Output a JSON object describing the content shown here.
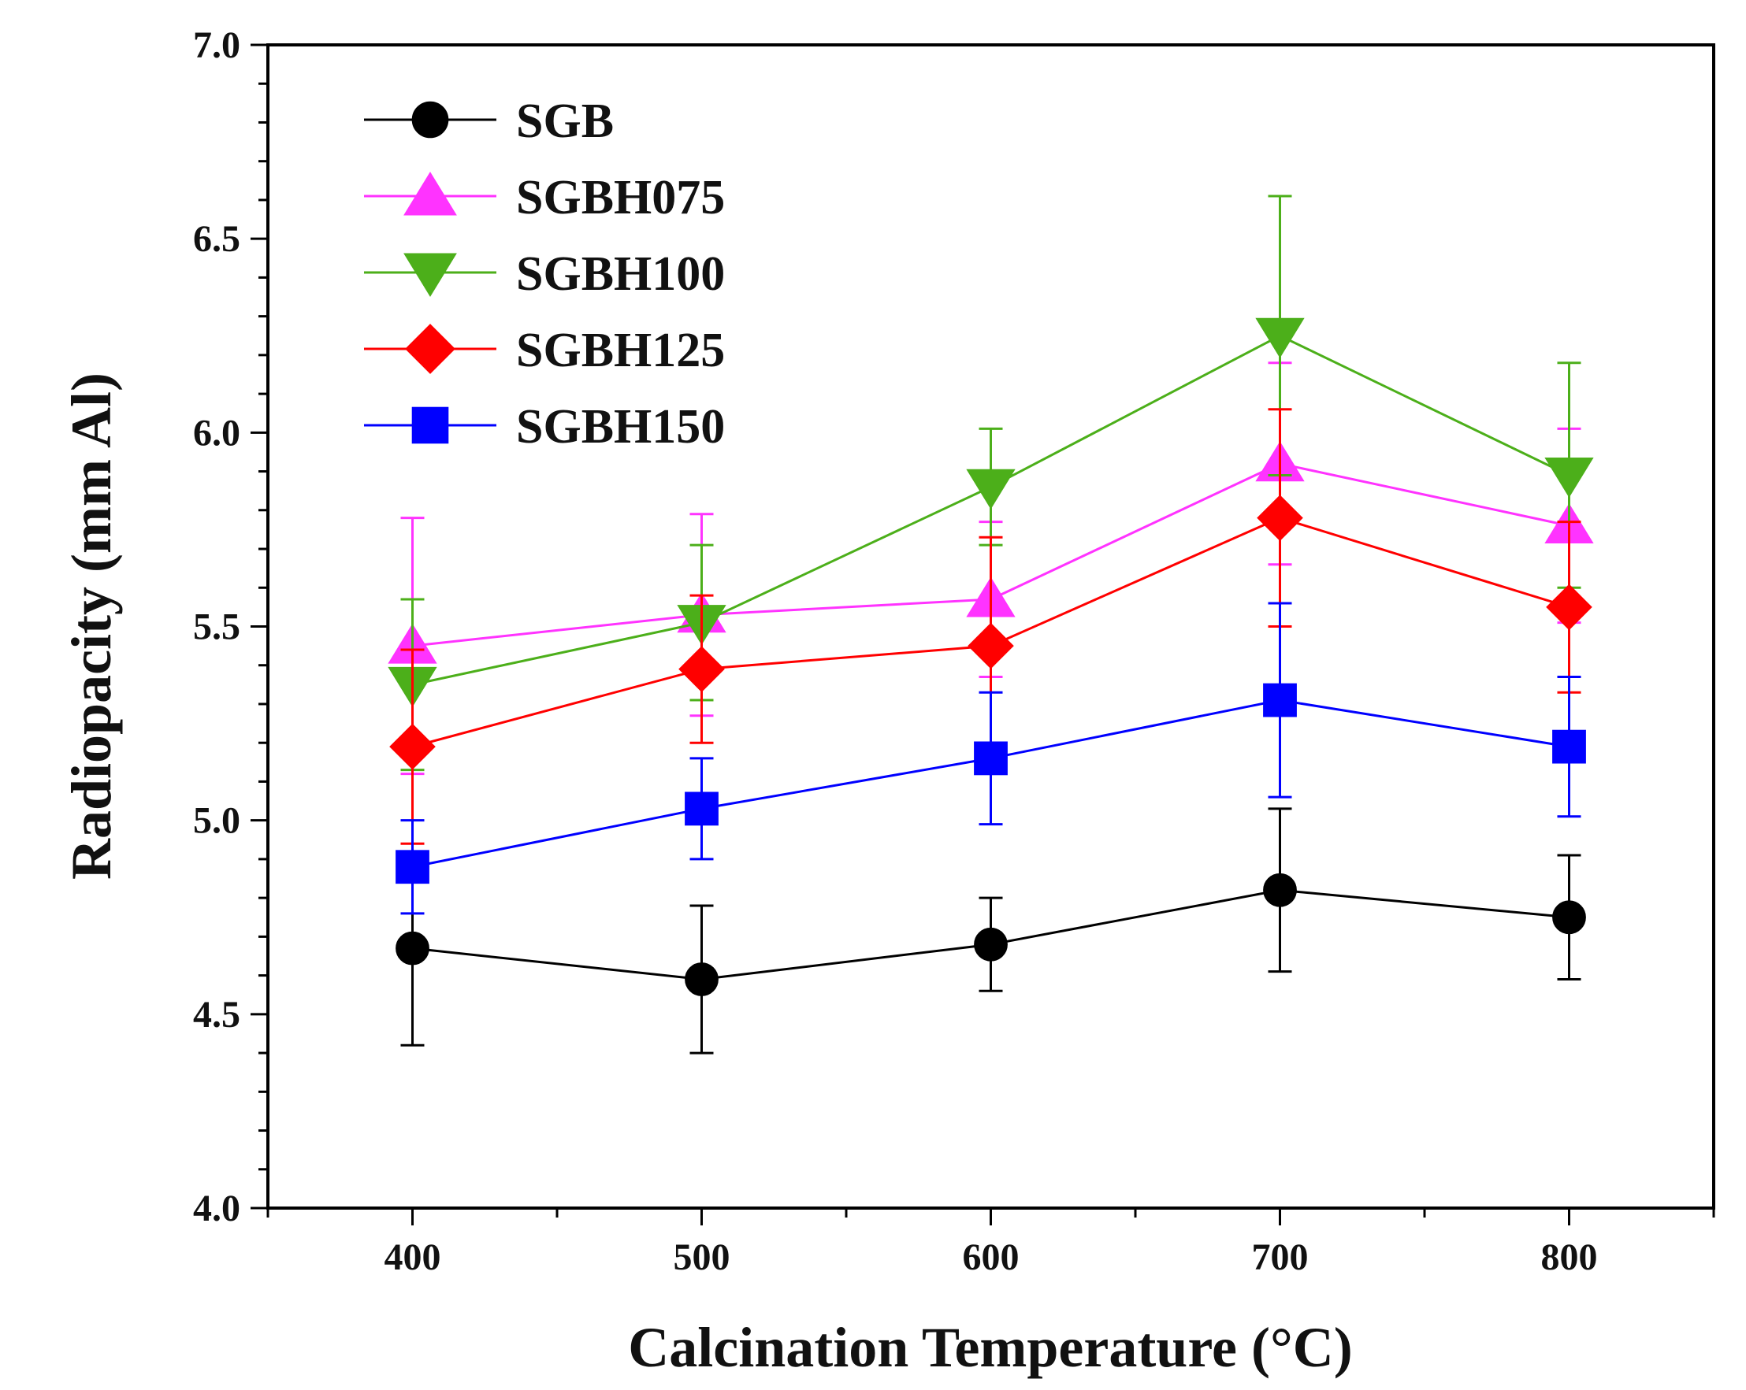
{
  "chart_data": {
    "type": "line",
    "title": "",
    "xlabel": "Calcination Temperature (°C)",
    "ylabel": "Radiopacity (mm Al)",
    "xlim": [
      350,
      850
    ],
    "ylim": [
      4.0,
      7.0
    ],
    "x": [
      400,
      500,
      600,
      700,
      800
    ],
    "x_ticks": [
      "400",
      "500",
      "600",
      "700",
      "800"
    ],
    "y_ticks": [
      "4.0",
      "4.5",
      "5.0",
      "5.5",
      "6.0",
      "6.5",
      "7.0"
    ],
    "legend_position": "top-left",
    "series": [
      {
        "name": "SGB",
        "color": "#000000",
        "marker": "circle",
        "values": [
          4.67,
          4.59,
          4.68,
          4.82,
          4.75
        ],
        "errors": [
          0.25,
          0.19,
          0.12,
          0.21,
          0.16
        ]
      },
      {
        "name": "SGBH075",
        "color": "#ff33ff",
        "marker": "triangle-up",
        "values": [
          5.45,
          5.53,
          5.57,
          5.92,
          5.76
        ],
        "errors": [
          0.33,
          0.26,
          0.2,
          0.26,
          0.25
        ]
      },
      {
        "name": "SGBH100",
        "color": "#4caf1a",
        "marker": "triangle-down",
        "values": [
          5.35,
          5.51,
          5.86,
          6.25,
          5.89
        ],
        "errors": [
          0.22,
          0.2,
          0.15,
          0.36,
          0.29
        ]
      },
      {
        "name": "SGBH125",
        "color": "#ff0000",
        "marker": "diamond",
        "values": [
          5.19,
          5.39,
          5.45,
          5.78,
          5.55
        ],
        "errors": [
          0.25,
          0.19,
          0.28,
          0.28,
          0.22
        ]
      },
      {
        "name": "SGBH150",
        "color": "#0000ff",
        "marker": "square",
        "values": [
          4.88,
          5.03,
          5.16,
          5.31,
          5.19
        ],
        "errors": [
          0.12,
          0.13,
          0.17,
          0.25,
          0.18
        ]
      }
    ]
  }
}
